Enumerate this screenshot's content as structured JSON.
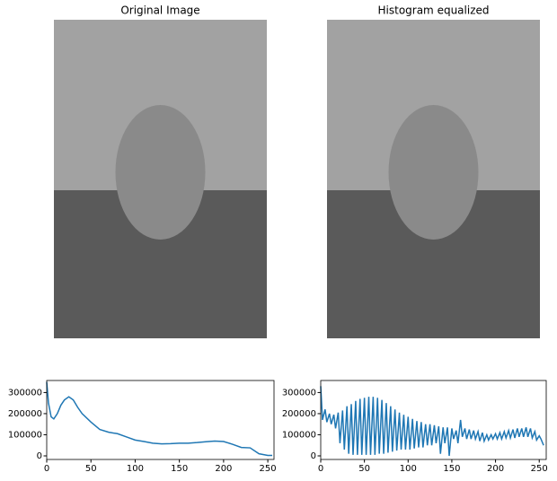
{
  "chart_data": [
    {
      "type": "image",
      "title": "Original Image"
    },
    {
      "type": "image",
      "title": "Histogram equalized"
    },
    {
      "type": "line",
      "color": "#1f77b4",
      "x": [
        0,
        2,
        5,
        8,
        12,
        16,
        20,
        25,
        30,
        35,
        40,
        50,
        60,
        70,
        80,
        90,
        100,
        110,
        120,
        130,
        140,
        150,
        160,
        170,
        180,
        190,
        200,
        210,
        220,
        230,
        240,
        250,
        255
      ],
      "values": [
        350000,
        250000,
        185000,
        175000,
        200000,
        240000,
        265000,
        280000,
        265000,
        230000,
        200000,
        160000,
        125000,
        112000,
        105000,
        90000,
        75000,
        68000,
        60000,
        57000,
        58000,
        60000,
        60000,
        63000,
        67000,
        70000,
        68000,
        55000,
        40000,
        38000,
        10000,
        2000,
        2000
      ],
      "xlim": [
        0,
        257
      ],
      "xticks": [
        0,
        50,
        100,
        150,
        200,
        250
      ],
      "ylim": [
        -17000,
        357000
      ],
      "yticks": [
        0,
        100000,
        200000,
        300000
      ]
    },
    {
      "type": "line",
      "color": "#1f77b4",
      "x": [
        0,
        2,
        5,
        7,
        10,
        12,
        15,
        17,
        20,
        22,
        25,
        27,
        30,
        32,
        35,
        37,
        40,
        42,
        45,
        47,
        50,
        52,
        55,
        57,
        60,
        62,
        65,
        67,
        70,
        72,
        75,
        77,
        80,
        82,
        85,
        87,
        90,
        92,
        95,
        97,
        100,
        102,
        105,
        107,
        110,
        112,
        115,
        117,
        120,
        122,
        125,
        127,
        130,
        132,
        135,
        137,
        140,
        142,
        145,
        147,
        150,
        152,
        155,
        157,
        160,
        162,
        165,
        167,
        170,
        172,
        175,
        177,
        180,
        182,
        185,
        187,
        190,
        192,
        195,
        197,
        200,
        202,
        205,
        207,
        210,
        212,
        215,
        217,
        220,
        222,
        225,
        227,
        230,
        232,
        235,
        237,
        240,
        242,
        245,
        247,
        250,
        252,
        255
      ],
      "values": [
        330000,
        170000,
        220000,
        160000,
        200000,
        150000,
        195000,
        130000,
        205000,
        60000,
        215000,
        30000,
        235000,
        10000,
        245000,
        5000,
        260000,
        5000,
        270000,
        5000,
        275000,
        5000,
        280000,
        5000,
        280000,
        5000,
        275000,
        10000,
        265000,
        10000,
        250000,
        15000,
        235000,
        20000,
        220000,
        25000,
        205000,
        30000,
        195000,
        30000,
        185000,
        30000,
        175000,
        35000,
        165000,
        40000,
        160000,
        40000,
        150000,
        50000,
        150000,
        50000,
        145000,
        60000,
        140000,
        10000,
        135000,
        60000,
        135000,
        0,
        130000,
        80000,
        120000,
        60000,
        170000,
        90000,
        130000,
        80000,
        125000,
        80000,
        120000,
        80000,
        115000,
        70000,
        110000,
        70000,
        100000,
        75000,
        100000,
        80000,
        105000,
        80000,
        110000,
        80000,
        115000,
        85000,
        120000,
        85000,
        125000,
        85000,
        130000,
        90000,
        130000,
        90000,
        135000,
        90000,
        130000,
        85000,
        115000,
        75000,
        95000,
        80000,
        50000
      ],
      "xlim": [
        0,
        258
      ],
      "xticks": [
        0,
        50,
        100,
        150,
        200,
        250
      ],
      "ylim": [
        -17000,
        357000
      ],
      "yticks": [
        0,
        100000,
        200000,
        300000
      ]
    }
  ]
}
